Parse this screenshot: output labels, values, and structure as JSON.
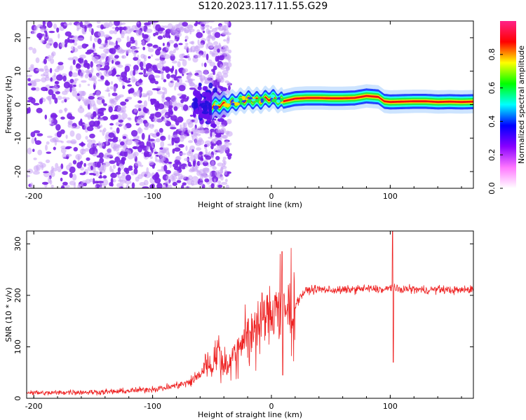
{
  "figure_title": "S120.2023.117.11.55.G29",
  "colors": {
    "trace": "#ee2222",
    "scatter": "#7722ee",
    "colormap": [
      "#ffffff",
      "#ff77ff",
      "#8800ff",
      "#0000ff",
      "#00ffff",
      "#00ff00",
      "#ffff00",
      "#ff0000",
      "#ff2288"
    ]
  },
  "chart_data": [
    {
      "type": "heatmap",
      "xlabel": "Height of straight line (km)",
      "ylabel": "Frequency (Hz)",
      "xlim": [
        -206,
        170
      ],
      "ylim": [
        -25,
        25
      ],
      "xticks": [
        -200,
        -100,
        0,
        100
      ],
      "yticks": [
        -20,
        -10,
        0,
        10,
        20
      ],
      "grid": false,
      "colorbar": {
        "label": "Normalized spectral amplitude",
        "range": [
          0,
          1
        ],
        "ticks": [
          "0.0",
          "0.2",
          "0.4",
          "0.6",
          "0.8"
        ]
      },
      "regions": [
        {
          "x": [
            -206,
            -50
          ],
          "description": "broadband scattered noise, amplitude ~0.15-0.25"
        },
        {
          "x": [
            -50,
            170
          ],
          "frequency_hz": 1.5,
          "amplitude": 0.9
        }
      ],
      "ridge": {
        "x": [
          -50,
          -40,
          -30,
          -20,
          -10,
          0,
          10,
          20,
          30,
          40,
          50,
          60,
          70,
          80,
          90,
          95,
          100,
          110,
          120,
          130,
          140,
          150,
          160,
          170
        ],
        "frequency": [
          -0.5,
          0.0,
          0.8,
          1.5,
          1.2,
          2.0,
          1.0,
          1.8,
          2.0,
          2.0,
          1.9,
          1.9,
          2.0,
          2.6,
          2.3,
          1.0,
          0.8,
          0.9,
          1.0,
          1.0,
          0.8,
          0.9,
          0.8,
          0.9
        ]
      }
    },
    {
      "type": "line",
      "xlabel": "Height of straight line (km)",
      "ylabel": "SNR (10 * v/v)",
      "xlim": [
        -206,
        170
      ],
      "ylim": [
        0,
        325
      ],
      "xticks": [
        -200,
        -100,
        0,
        100
      ],
      "yticks": [
        0,
        100,
        200,
        300
      ],
      "grid": false,
      "series": [
        {
          "x": [
            -206,
            -190,
            -170,
            -150,
            -130,
            -110,
            -100,
            -90,
            -80,
            -70,
            -60,
            -55,
            -50,
            -45,
            -40,
            -35,
            -30,
            -25,
            -20,
            -15,
            -10,
            -5,
            0,
            5,
            10,
            15,
            20,
            25,
            30,
            40,
            50,
            60,
            70,
            80,
            90,
            95,
            100,
            102,
            105,
            110,
            120,
            130,
            140,
            150,
            160,
            170
          ],
          "y": [
            12,
            10,
            12,
            12,
            13,
            16,
            18,
            20,
            25,
            30,
            45,
            70,
            60,
            100,
            60,
            70,
            90,
            120,
            120,
            140,
            150,
            160,
            160,
            170,
            160,
            170,
            180,
            200,
            210,
            212,
            210,
            210,
            212,
            213,
            212,
            210,
            215,
            220,
            210,
            212,
            212,
            210,
            212,
            210,
            210,
            212
          ]
        }
      ],
      "spikes": [
        {
          "x": 9,
          "low": 45,
          "high": 285
        },
        {
          "x": 102,
          "low": 70,
          "high": 325
        }
      ]
    }
  ]
}
